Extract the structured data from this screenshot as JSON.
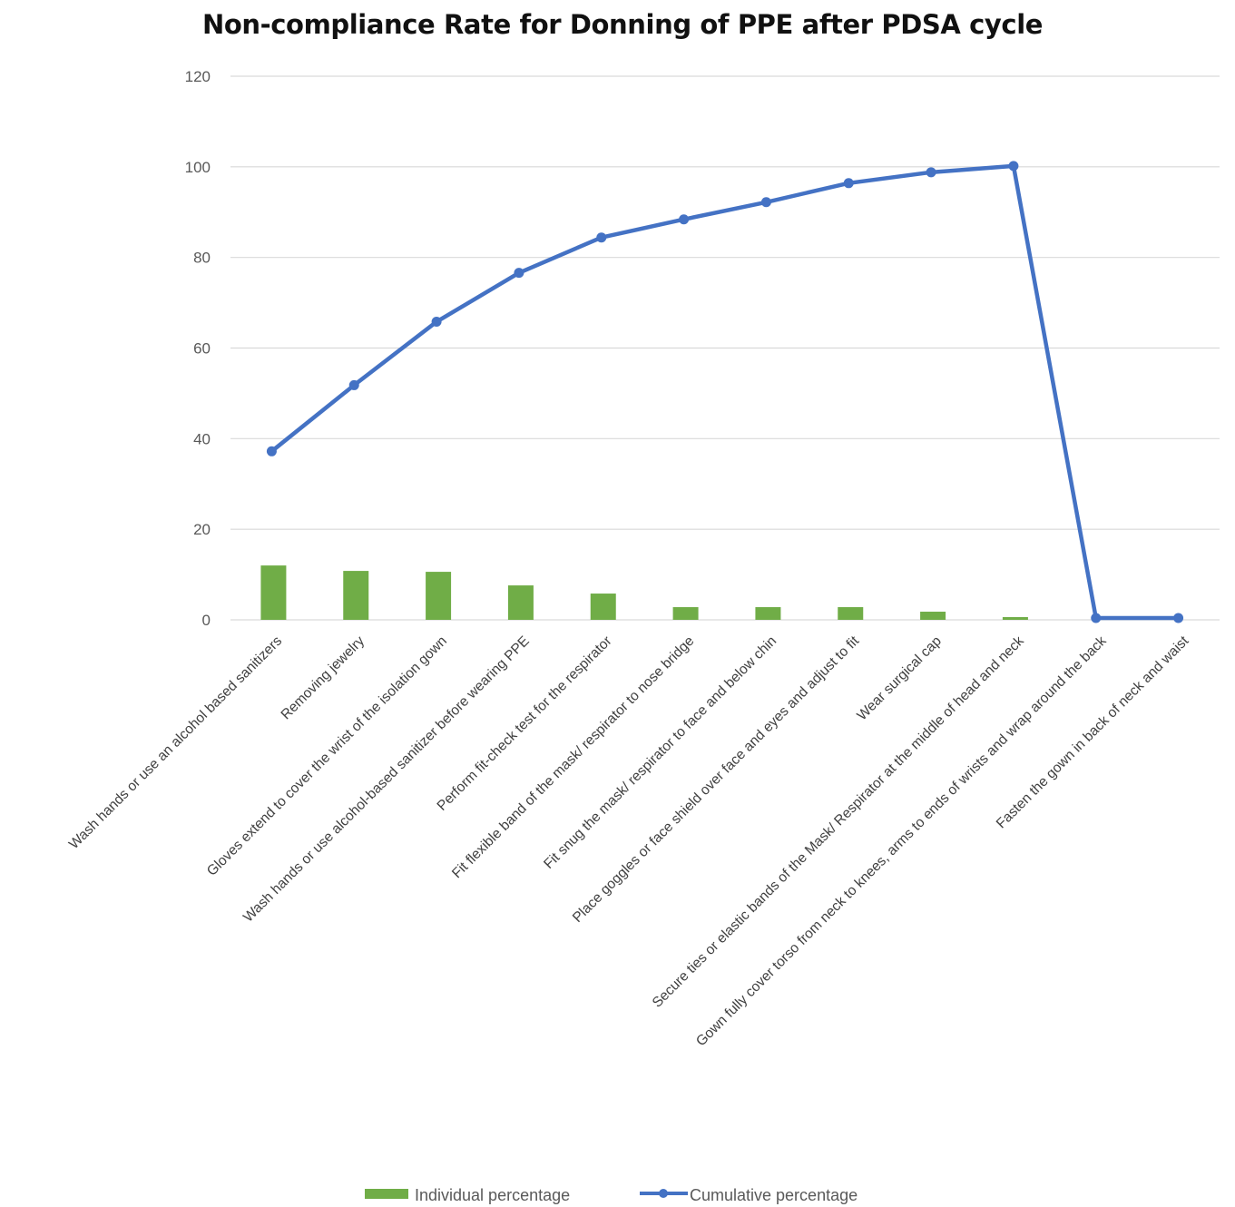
{
  "chart_data": {
    "type": "bar",
    "title": "Non-compliance Rate for Donning of PPE after PDSA cycle",
    "xlabel": "",
    "ylabel": "",
    "ylim": [
      0,
      120
    ],
    "yticks": [
      0,
      20,
      40,
      60,
      80,
      100,
      120
    ],
    "grid": true,
    "legend_position": "bottom",
    "colors": {
      "bar": "#70ad47",
      "line": "#4472c4",
      "grid": "#d9d9d9"
    },
    "categories": [
      "Wash hands or use an alcohol based sanitizers",
      "Removing jewelry",
      "Gloves extend to cover the wrist of the isolation gown",
      "Wash hands or use alcohol-based sanitizer before wearing PPE",
      "Perform fit-check test for the respirator",
      "Fit flexible band of the mask/ respirator to nose bridge",
      "Fit snug the mask/ respirator to face and below chin",
      "Place goggles or face shield over face and eyes and adjust to fit",
      "Wear surgical cap",
      "Secure ties or elastic bands of the Mask/ Respirator at the middle of head and neck",
      "Gown fully cover torso from neck to knees, arms to ends of wrists and wrap around the back",
      "Fasten the gown in back of neck and waist"
    ],
    "series": [
      {
        "name": "Individual percentage",
        "type": "bar",
        "values": [
          12,
          10.8,
          10.6,
          7.6,
          5.8,
          2.8,
          2.8,
          2.8,
          1.8,
          0.6,
          0,
          0
        ]
      },
      {
        "name": "Cumulative percentage",
        "type": "line",
        "values": [
          37.2,
          51.8,
          65.8,
          76.6,
          84.4,
          88.4,
          92.2,
          96.4,
          98.8,
          100.2,
          0.4,
          0.4
        ]
      }
    ]
  }
}
